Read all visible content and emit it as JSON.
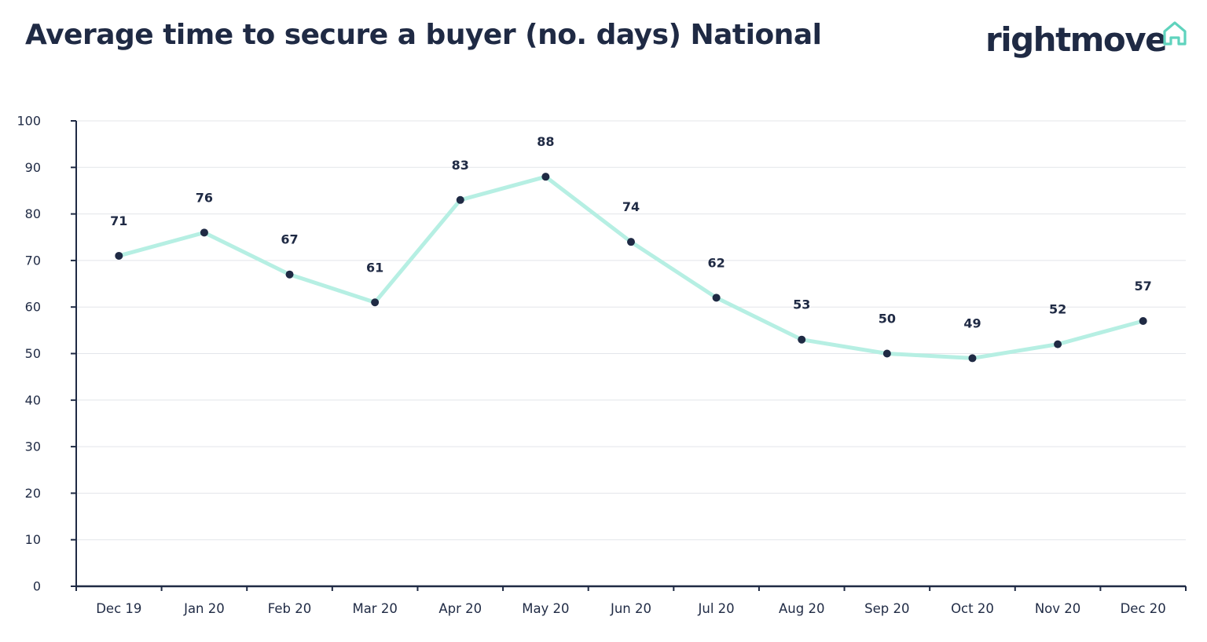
{
  "header": {
    "title": "Average time to secure a buyer (no. days) National",
    "logo_text": "rightmove",
    "logo_icon": "house-outline-icon"
  },
  "colors": {
    "line": "#b6efe3",
    "marker": "#1f2a44",
    "axis": "#1f2a44",
    "grid": "#e3e5ea",
    "text": "#1f2a44",
    "logo_icon": "#5fd3bd"
  },
  "chart_data": {
    "type": "line",
    "title": "Average time to secure a buyer (no. days) National",
    "xlabel": "",
    "ylabel": "",
    "ylim": [
      0,
      100
    ],
    "yticks": [
      0,
      10,
      20,
      30,
      40,
      50,
      60,
      70,
      80,
      90,
      100
    ],
    "grid": true,
    "categories": [
      "Dec 19",
      "Jan 20",
      "Feb 20",
      "Mar 20",
      "Apr 20",
      "May 20",
      "Jun 20",
      "Jul 20",
      "Aug 20",
      "Sep 20",
      "Oct 20",
      "Nov 20",
      "Dec 20"
    ],
    "series": [
      {
        "values": [
          71,
          76,
          67,
          61,
          83,
          88,
          74,
          62,
          53,
          50,
          49,
          52,
          57
        ],
        "labels": [
          "71",
          "76",
          "67",
          "61",
          "83",
          "88",
          "74",
          "62",
          "53",
          "50",
          "49",
          "52",
          "57"
        ]
      }
    ]
  }
}
